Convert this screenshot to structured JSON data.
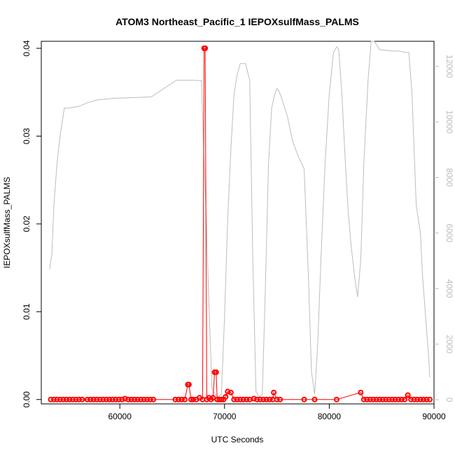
{
  "chart_data": {
    "type": "line",
    "title": "ATOM3 Northeast_Pacific_1 IEPOXsulfMass_PALMS",
    "xlabel": "UTC Seconds",
    "ylabel": "IEPOXsulfMass_PALMS",
    "y2label": "",
    "xlim": [
      52500,
      90000
    ],
    "ylim": [
      -0.0005,
      0.0408
    ],
    "y2lim": [
      -150,
      12900
    ],
    "x_ticks": [
      60000,
      70000,
      80000,
      90000
    ],
    "y_ticks": [
      0.0,
      0.01,
      0.02,
      0.03,
      0.04
    ],
    "y_tick_labels": [
      "0.00",
      "0.01",
      "0.02",
      "0.03",
      "0.04"
    ],
    "y2_ticks": [
      0,
      2000,
      4000,
      6000,
      8000,
      10000,
      12000
    ],
    "grid": false,
    "colors": {
      "primary": "#ff0000",
      "secondary": "#bdbdbd"
    },
    "series": [
      {
        "axis": "left",
        "style": "points-lines",
        "color": "#ff0000",
        "x": [
          53400,
          53700,
          54000,
          54300,
          54600,
          54900,
          55200,
          55500,
          55800,
          56100,
          56400,
          56900,
          57200,
          57500,
          57800,
          58100,
          58400,
          58700,
          59000,
          59300,
          59600,
          59900,
          60200,
          60500,
          60800,
          61100,
          61400,
          61700,
          62000,
          62300,
          62600,
          62900,
          63200,
          65300,
          65600,
          65900,
          66200,
          66500,
          66600,
          66800,
          67000,
          67300,
          67600,
          67900,
          68050,
          68150,
          68300,
          68500,
          68700,
          68900,
          69050,
          69200,
          69300,
          69500,
          69700,
          69900,
          70100,
          70300,
          70600,
          70900,
          71200,
          71500,
          71800,
          72100,
          72400,
          72800,
          73100,
          73400,
          73700,
          74000,
          74300,
          74600,
          74700,
          75000,
          75300,
          77600,
          78600,
          80700,
          83000,
          83300,
          83600,
          83900,
          84200,
          84500,
          84800,
          85100,
          85400,
          85700,
          86000,
          86300,
          86600,
          86900,
          87200,
          87500,
          87800,
          88100,
          88400,
          88700,
          89000,
          89300,
          89600
        ],
        "y": [
          0,
          0,
          0,
          0,
          0,
          0,
          0,
          0,
          0,
          0,
          0,
          0,
          0,
          0,
          0,
          0,
          0,
          0,
          0,
          0,
          0,
          0,
          0,
          0.0001,
          0,
          0,
          0,
          0,
          0,
          0,
          0,
          0,
          0,
          0,
          0,
          0,
          0,
          0.0017,
          0.0017,
          0,
          0,
          0,
          0.0002,
          0,
          0.04,
          0.04,
          0,
          0.0002,
          0,
          0.0002,
          0.0031,
          0.0031,
          0,
          0,
          0,
          0,
          0.0003,
          0.0009,
          0.0008,
          0,
          0,
          0,
          0,
          0,
          0,
          0.0001,
          0,
          0,
          0,
          0,
          0,
          0,
          0.0008,
          0,
          0,
          0,
          0,
          0,
          0.0008,
          0,
          0,
          0,
          0,
          0,
          0,
          0,
          0,
          0,
          0,
          0,
          0,
          0,
          0,
          0.0005,
          0,
          0,
          0,
          0,
          0,
          0,
          0
        ]
      },
      {
        "axis": "right",
        "style": "line",
        "color": "#bdbdbd",
        "x": [
          53300,
          53400,
          53500,
          53700,
          54000,
          54300,
          54700,
          55200,
          56000,
          57000,
          58000,
          59500,
          61000,
          63000,
          65400,
          67000,
          67800,
          68000,
          68200,
          68500,
          68800,
          69100,
          69400,
          69700,
          70000,
          70300,
          70600,
          70900,
          71200,
          71500,
          72000,
          72400,
          72700,
          73000,
          73300,
          73600,
          73900,
          74200,
          74500,
          74800,
          75000,
          75200,
          75500,
          76000,
          76500,
          77000,
          77600,
          78000,
          78300,
          78600,
          78900,
          79200,
          79600,
          80000,
          80400,
          80700,
          80900,
          81200,
          81500,
          81800,
          82100,
          82400,
          82700,
          83000,
          83300,
          83700,
          84000,
          84300,
          84800,
          86000,
          86700,
          87300,
          87600,
          87900,
          88300,
          88700,
          88900,
          89100,
          89300,
          89500,
          89600
        ],
        "y": [
          4700,
          5000,
          5200,
          7000,
          8500,
          9500,
          10500,
          10500,
          10550,
          10700,
          10800,
          10850,
          10870,
          10900,
          11500,
          11500,
          11480,
          9000,
          7000,
          3500,
          400,
          200,
          100,
          200,
          3000,
          6500,
          9000,
          11000,
          11700,
          12100,
          12100,
          11500,
          5000,
          300,
          100,
          200,
          4000,
          8500,
          10500,
          11000,
          11200,
          11100,
          10800,
          10200,
          9300,
          8800,
          8300,
          4500,
          1000,
          200,
          2000,
          5000,
          8500,
          11000,
          12500,
          12700,
          12600,
          11000,
          8800,
          6800,
          5500,
          4500,
          3700,
          5000,
          8500,
          11500,
          12900,
          12900,
          12600,
          12550,
          12550,
          12500,
          12500,
          11000,
          7000,
          6000,
          4500,
          3500,
          2500,
          1500,
          800
        ]
      }
    ]
  }
}
